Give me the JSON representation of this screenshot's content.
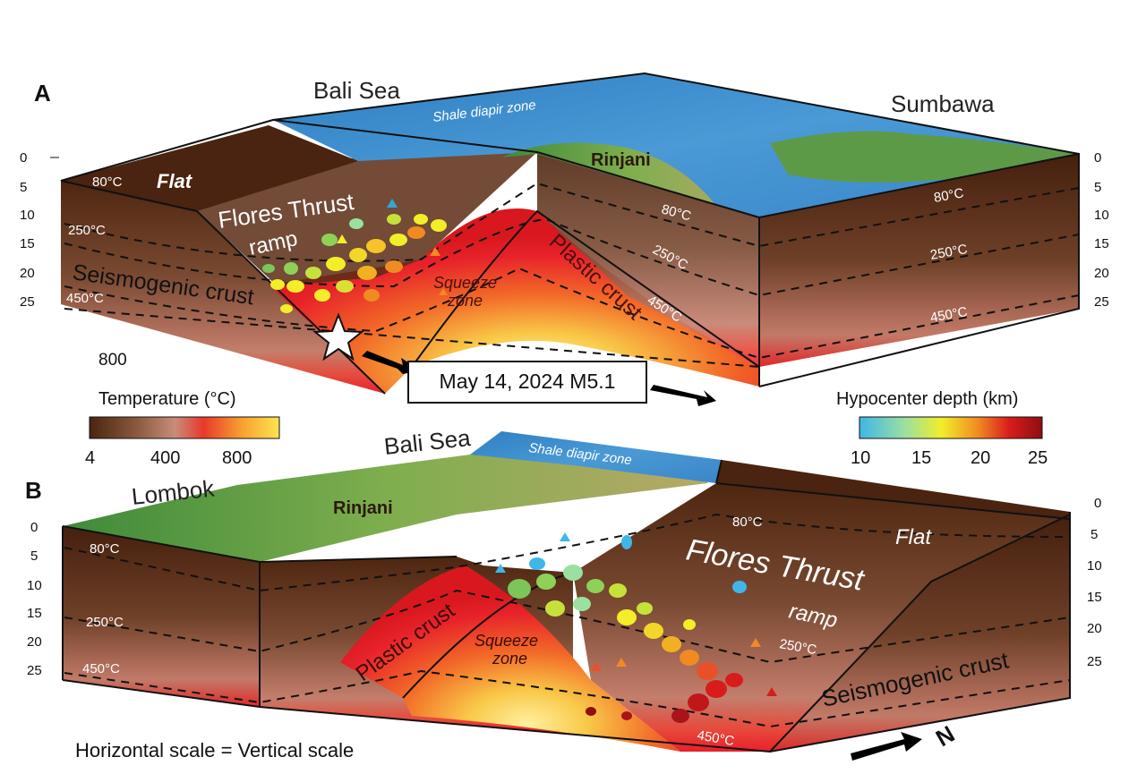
{
  "panelA": {
    "letter": "A",
    "sea_label": "Bali Sea",
    "island_label": "Sumbawa",
    "diapir_label": "Shale diapir zone",
    "volcano_label": "Rinjani",
    "flat_label": "Flat",
    "thrust_label": "Flores Thrust",
    "ramp_label": "ramp",
    "seismogenic_label": "Seismogenic crust",
    "plastic_label": "Plastic crust",
    "squeeze_label_1": "Squeeze",
    "squeeze_label_2": "zone",
    "isotherm_80": "80°C",
    "isotherm_250": "250°C",
    "isotherm_450": "450°C",
    "deep_temp": "800",
    "event_label": "May 14, 2024 M5.1",
    "depth_ticks": [
      "0",
      "5",
      "10",
      "15",
      "20",
      "25"
    ]
  },
  "panelB": {
    "letter": "B",
    "sea_label": "Bali Sea",
    "island_label": "Lombok",
    "diapir_label": "Shale diapir zone",
    "volcano_label": "Rinjani",
    "flat_label": "Flat",
    "thrust_label": "Flores Thrust",
    "ramp_label": "ramp",
    "seismogenic_label": "Seismogenic crust",
    "plastic_label": "Plastic crust",
    "squeeze_label_1": "Squeeze",
    "squeeze_label_2": "zone",
    "isotherm_80": "80°C",
    "isotherm_250": "250°C",
    "isotherm_450": "450°C",
    "depth_ticks": [
      "0",
      "5",
      "10",
      "15",
      "20",
      "25"
    ],
    "north_symbol": "N"
  },
  "temperature_legend": {
    "title": "Temperature (°C)",
    "ticks": [
      "4",
      "400",
      "800"
    ],
    "colors": [
      "#4a2410",
      "#8a5a40",
      "#c98c7a",
      "#e8392a",
      "#f7a030",
      "#fde54e"
    ]
  },
  "hypocenter_legend": {
    "title": "Hypocenter depth (km)",
    "ticks": [
      "10",
      "15",
      "20",
      "25"
    ],
    "colors": [
      "#3fb6e8",
      "#9be0a0",
      "#f2ee28",
      "#f08a22",
      "#d81c1c",
      "#8e0e12"
    ]
  },
  "scale_note": "Horizontal scale = Vertical scale"
}
